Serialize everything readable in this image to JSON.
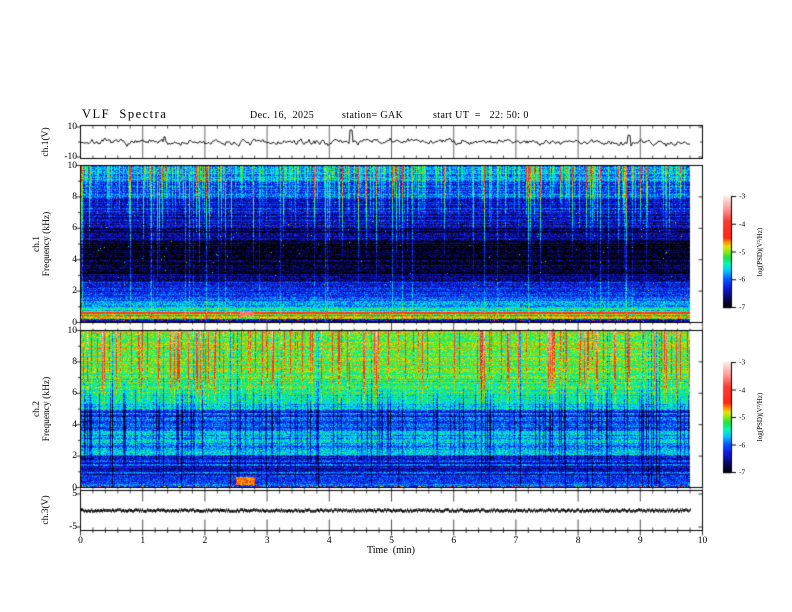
{
  "title": {
    "main": "VLF  Spectra",
    "date": "Dec. 16,  2025",
    "station": "station= GAK",
    "start_ut": "start UT  =   22: 50: 0"
  },
  "x_axis": {
    "label": "Time  (min)",
    "ticks": [
      "0",
      "1",
      "2",
      "3",
      "4",
      "5",
      "6",
      "7",
      "8",
      "9",
      "10"
    ],
    "min": 0,
    "max": 10,
    "minor_step": 0.2
  },
  "panels": {
    "ch1_wave": {
      "ylabel": "ch.1(V)",
      "yticks": [
        {
          "v": 10,
          "label": "10"
        },
        {
          "v": -10,
          "label": "-10"
        }
      ]
    },
    "ch1_spec": {
      "ylabel_line1": "ch.1",
      "ylabel_line2": "Frequency  (kHz)",
      "yticks": [
        {
          "v": 10,
          "label": "10"
        },
        {
          "v": 8,
          "label": "8"
        },
        {
          "v": 6,
          "label": "6"
        },
        {
          "v": 4,
          "label": "4"
        },
        {
          "v": 2,
          "label": "2"
        },
        {
          "v": 0,
          "label": "0"
        }
      ]
    },
    "ch2_spec": {
      "ylabel_line1": "ch.2",
      "ylabel_line2": "Frequency  (kHz)",
      "yticks": [
        {
          "v": 10,
          "label": "10"
        },
        {
          "v": 8,
          "label": "8"
        },
        {
          "v": 6,
          "label": "6"
        },
        {
          "v": 4,
          "label": "4"
        },
        {
          "v": 2,
          "label": "2"
        },
        {
          "v": 0,
          "label": "0"
        }
      ]
    },
    "ch3": {
      "ylabel": "ch.3(V)",
      "yticks": [
        {
          "v": 5,
          "label": "5"
        },
        {
          "v": -5,
          "label": "-5"
        }
      ]
    }
  },
  "colorbars": {
    "label": "log(PSD)(V²/Hz)",
    "ticks": [
      "-3",
      "-4",
      "-5",
      "-6",
      "-7"
    ],
    "min": -7,
    "max": -3,
    "stops": [
      [
        0.0,
        0,
        0,
        0
      ],
      [
        0.08,
        8,
        8,
        95
      ],
      [
        0.18,
        20,
        25,
        230
      ],
      [
        0.26,
        0,
        95,
        255
      ],
      [
        0.33,
        0,
        200,
        255
      ],
      [
        0.39,
        0,
        250,
        185
      ],
      [
        0.45,
        35,
        225,
        70
      ],
      [
        0.5,
        135,
        235,
        25
      ],
      [
        0.545,
        232,
        228,
        0
      ],
      [
        0.585,
        255,
        150,
        0
      ],
      [
        0.63,
        255,
        40,
        20
      ],
      [
        0.78,
        250,
        62,
        52
      ],
      [
        0.88,
        255,
        150,
        150
      ],
      [
        1.0,
        255,
        233,
        233
      ]
    ]
  },
  "chart_data": [
    {
      "type": "line",
      "id": "ch1_waveform",
      "ylabel": "ch.1(V)",
      "xlim": [
        0,
        10
      ],
      "ylim": [
        -10,
        10
      ],
      "data_end_min": 9.8,
      "baseline": 0,
      "noise_amplitude": 2,
      "spikes": [
        {
          "t": 4.35,
          "v": 8.0
        },
        {
          "t": 8.82,
          "v": 4.5
        },
        {
          "t": 1.35,
          "v": 3.5
        }
      ]
    },
    {
      "type": "heatmap",
      "id": "ch1_spectrogram",
      "ylabel": "ch.1 Frequency (kHz)",
      "xlim": [
        0,
        10
      ],
      "f_range_khz": [
        0,
        10
      ],
      "value_range_log_psd": [
        -7,
        -3
      ],
      "data_end_min": 9.8,
      "bands": [
        {
          "f": [
            9,
            10.01
          ],
          "psd": -5.85
        },
        {
          "f": [
            8,
            9
          ],
          "psd": -6.05
        },
        {
          "f": [
            7,
            8
          ],
          "psd": -6.3
        },
        {
          "f": [
            6,
            7
          ],
          "psd": -6.45
        },
        {
          "f": [
            5.2,
            6
          ],
          "psd": -6.6
        },
        {
          "f": [
            3.2,
            5.2
          ],
          "psd": -6.85
        },
        {
          "f": [
            2.6,
            3.2
          ],
          "psd": -6.55
        },
        {
          "f": [
            1.5,
            2.6
          ],
          "psd": -6.2
        },
        {
          "f": [
            1.05,
            1.5
          ],
          "psd": -5.9
        },
        {
          "f": [
            0.8,
            1.05
          ],
          "psd": -5.45
        },
        {
          "f": [
            0.3,
            0.8
          ],
          "psd": -5.7
        },
        {
          "f": [
            0.15,
            0.3
          ],
          "psd": -6.4
        },
        {
          "f": [
            0,
            0.15
          ],
          "psd": -6.55
        }
      ],
      "lines": [
        {
          "f": 0.73,
          "psd": -4.75
        },
        {
          "f": 0.64,
          "psd": -4.15
        },
        {
          "f": 0.56,
          "psd": -4.9
        },
        {
          "f": 0.48,
          "psd": -4.35
        },
        {
          "f": 0.4,
          "psd": -4.75
        },
        {
          "f": 0.33,
          "psd": -5.15
        }
      ],
      "features": [
        {
          "t": [
            2.55,
            2.78
          ],
          "f": [
            0.45,
            0.78
          ],
          "psd": -3.6
        }
      ],
      "streaks": {
        "mode": "ch1",
        "prob_strong": 0.1,
        "strong_boost": [
          0.9,
          2.0
        ],
        "prob_weak": 0.35,
        "weak_boost": [
          0.2,
          0.9
        ],
        "depth": [
          0.25,
          0.85
        ],
        "prob_fullline": 0.05
      }
    },
    {
      "type": "heatmap",
      "id": "ch2_spectrogram",
      "ylabel": "ch.2 Frequency (kHz)",
      "xlim": [
        0,
        10
      ],
      "f_range_khz": [
        0,
        10
      ],
      "value_range_log_psd": [
        -7,
        -3
      ],
      "data_end_min": 9.8,
      "bands": [
        {
          "f": [
            8.5,
            10.01
          ],
          "psd": -5.05
        },
        {
          "f": [
            7,
            8.5
          ],
          "psd": -5.15
        },
        {
          "f": [
            6,
            7
          ],
          "psd": -5.35
        },
        {
          "f": [
            5,
            6
          ],
          "psd": -5.55
        },
        {
          "f": [
            4,
            5
          ],
          "psd": -5.85
        },
        {
          "f": [
            3,
            4
          ],
          "psd": -5.7
        },
        {
          "f": [
            2,
            3
          ],
          "psd": -5.8
        },
        {
          "f": [
            1.3,
            2
          ],
          "psd": -6.05
        },
        {
          "f": [
            0.6,
            1.3
          ],
          "psd": -6.15
        },
        {
          "f": [
            0.25,
            0.6
          ],
          "psd": -6.3
        },
        {
          "f": [
            0,
            0.25
          ],
          "psd": -6.1
        }
      ],
      "lines": [],
      "features": [
        {
          "t": [
            2.5,
            2.8
          ],
          "f": [
            0.2,
            0.7
          ],
          "psd": -4.6
        }
      ],
      "streaks": {
        "mode": "ch2",
        "prob_bright": 0.22,
        "bright_boost": [
          0.6,
          2.0
        ],
        "prob_dark": 0.18,
        "dark_drop": [
          0.4,
          1.0
        ],
        "prob_fulldark": 0.06
      }
    },
    {
      "type": "line",
      "id": "ch3_trace",
      "ylabel": "ch.3(V)",
      "xlim": [
        0,
        10
      ],
      "ylim": [
        -5,
        5
      ],
      "data_end_min": 9.8,
      "baseline": 0,
      "noise_amplitude": 0.3,
      "description": "flat thick trace at 0 V"
    }
  ]
}
